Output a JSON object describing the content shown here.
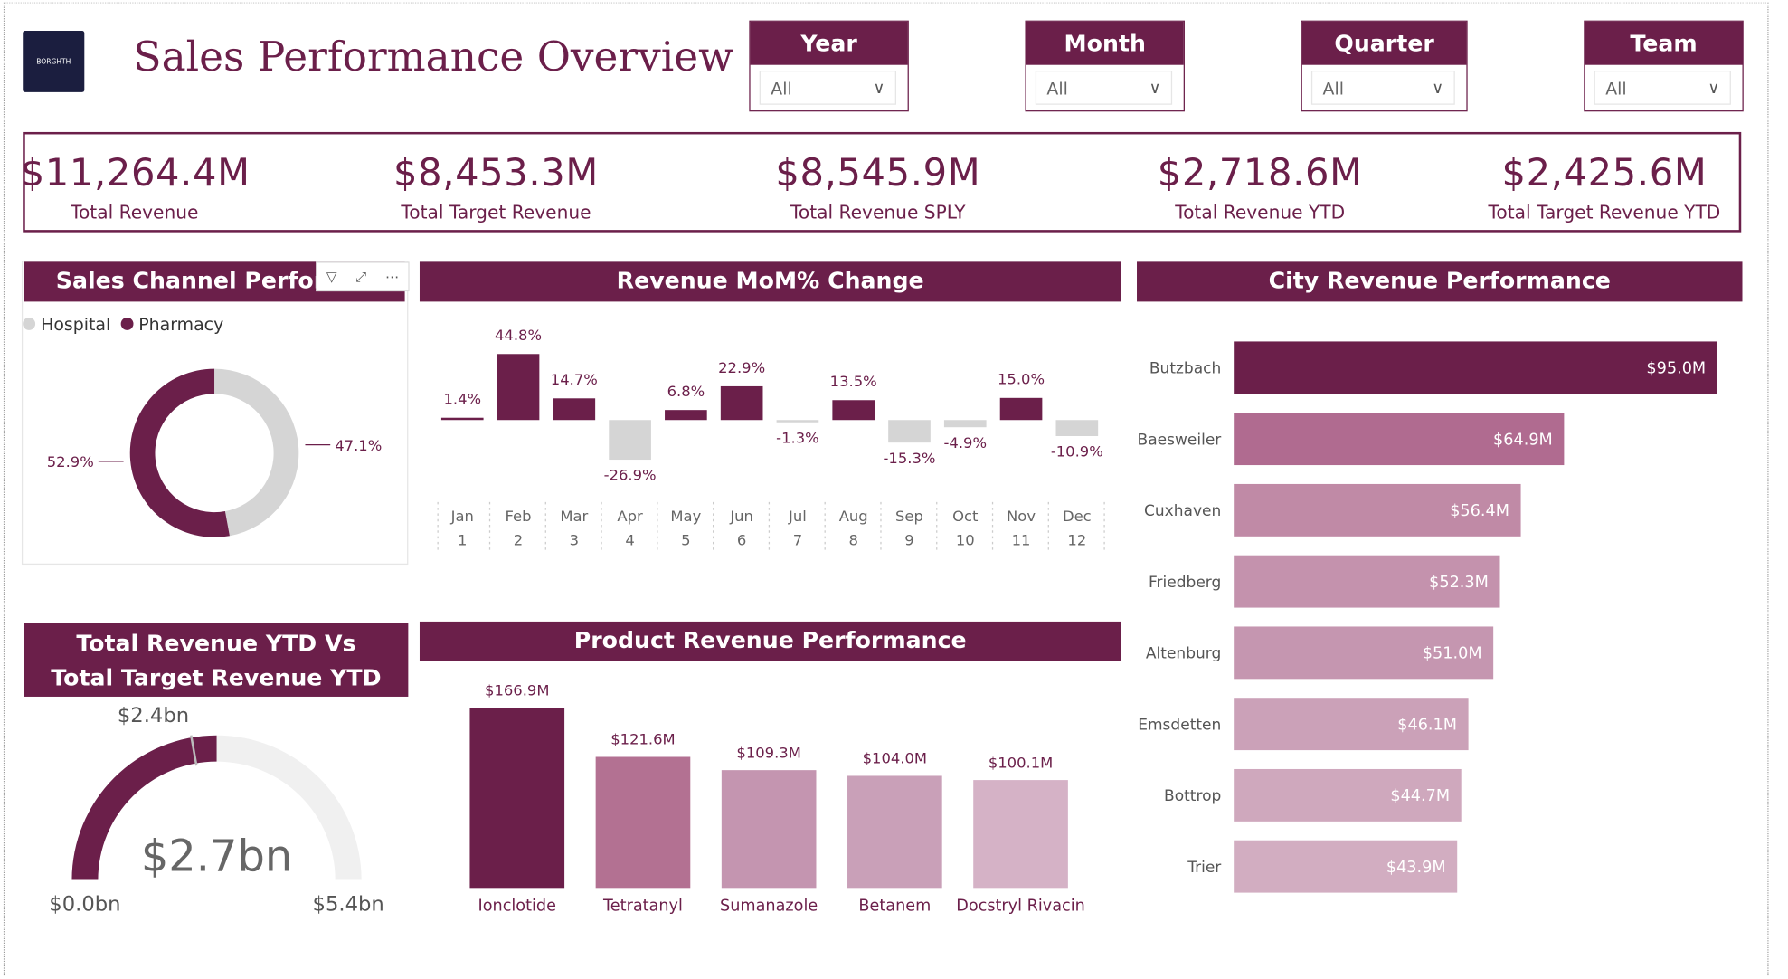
{
  "header": {
    "title": "Sales Performance Overview",
    "logo_text": "BORGHTH"
  },
  "filters": [
    {
      "label": "Year",
      "value": "All"
    },
    {
      "label": "Month",
      "value": "All"
    },
    {
      "label": "Quarter",
      "value": "All"
    },
    {
      "label": "Team",
      "value": "All"
    }
  ],
  "kpis": [
    {
      "value": "$11,264.4M",
      "label": "Total Revenue"
    },
    {
      "value": "$8,453.3M",
      "label": "Total Target Revenue"
    },
    {
      "value": "$8,545.9M",
      "label": "Total Revenue SPLY"
    },
    {
      "value": "$2,718.6M",
      "label": "Total Revenue YTD"
    },
    {
      "value": "$2,425.6M",
      "label": "Total Target Revenue YTD"
    }
  ],
  "panels": {
    "sales_channel": "Sales Channel Performance",
    "mom": "Revenue MoM% Change",
    "city": "City Revenue Performance",
    "gauge": "Total Revenue YTD Vs Total Target Revenue YTD",
    "product": "Product Revenue Performance"
  },
  "colors": {
    "brand": "#6b1f4a",
    "neutral": "#d5d5d5",
    "track": "#f0f0f0"
  },
  "chart_data": [
    {
      "id": "sales_channel",
      "type": "pie",
      "donut": true,
      "categories": [
        "Hospital",
        "Pharmacy"
      ],
      "values": [
        47.1,
        52.9
      ],
      "value_labels": [
        "47.1%",
        "52.9%"
      ],
      "colors": [
        "#d5d5d5",
        "#6b1f4a"
      ],
      "legend": "top-left"
    },
    {
      "id": "mom",
      "type": "bar",
      "categories": [
        "Jan",
        "Feb",
        "Mar",
        "Apr",
        "May",
        "Jun",
        "Jul",
        "Aug",
        "Sep",
        "Oct",
        "Nov",
        "Dec"
      ],
      "subcategories": [
        "1",
        "2",
        "3",
        "4",
        "5",
        "6",
        "7",
        "8",
        "9",
        "10",
        "11",
        "12"
      ],
      "values": [
        1.4,
        44.8,
        14.7,
        -26.9,
        6.8,
        22.9,
        -1.3,
        13.5,
        -15.3,
        -4.9,
        15.0,
        -10.9
      ],
      "value_labels": [
        "1.4%",
        "44.8%",
        "14.7%",
        "-26.9%",
        "6.8%",
        "22.9%",
        "-1.3%",
        "13.5%",
        "-15.3%",
        "-4.9%",
        "15.0%",
        "-10.9%"
      ],
      "positive_color": "#6b1f4a",
      "negative_color": "#d5d5d5"
    },
    {
      "id": "city",
      "type": "bar",
      "orientation": "horizontal",
      "categories": [
        "Butzbach",
        "Baesweiler",
        "Cuxhaven",
        "Friedberg",
        "Altenburg",
        "Emsdetten",
        "Bottrop",
        "Trier"
      ],
      "values": [
        95.0,
        64.9,
        56.4,
        52.3,
        51.0,
        46.1,
        44.7,
        43.9
      ],
      "value_labels": [
        "$95.0M",
        "$64.9M",
        "$56.4M",
        "$52.3M",
        "$51.0M",
        "$46.1M",
        "$44.7M",
        "$43.9M"
      ],
      "colors": [
        "#6b1f4a",
        "#b06b90",
        "#c08aa6",
        "#c492ad",
        "#c596b0",
        "#cba1b8",
        "#cfa8bd",
        "#d2adc1"
      ]
    },
    {
      "id": "gauge",
      "type": "gauge",
      "value": 2.7,
      "target": 2.4,
      "min": 0.0,
      "max": 5.4,
      "value_label": "$2.7bn",
      "target_label": "$2.4bn",
      "min_label": "$0.0bn",
      "max_label": "$5.4bn"
    },
    {
      "id": "product",
      "type": "bar",
      "categories": [
        "Ionclotide",
        "Tetratanyl",
        "Sumanazole",
        "Betanem",
        "Docstryl Rivacin"
      ],
      "values": [
        166.9,
        121.6,
        109.3,
        104.0,
        100.1
      ],
      "value_labels": [
        "$166.9M",
        "$121.6M",
        "$109.3M",
        "$104.0M",
        "$100.1M"
      ],
      "colors": [
        "#6b1f4a",
        "#b37192",
        "#c495b0",
        "#c9a0b8",
        "#d5b2c6"
      ]
    }
  ]
}
